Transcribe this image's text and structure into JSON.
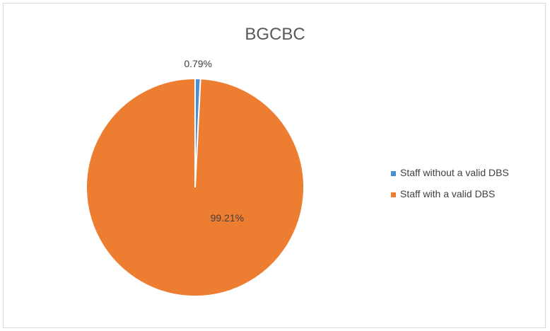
{
  "chart_data": {
    "type": "pie",
    "title": "BGCBC",
    "categories": [
      "Staff without a valid DBS",
      "Staff with a valid DBS"
    ],
    "values": [
      0.79,
      99.21
    ],
    "data_labels": [
      "0.79%",
      "99.21%"
    ],
    "colors": [
      "#4a8fd6",
      "#ed7d31"
    ],
    "legend_position": "right"
  }
}
